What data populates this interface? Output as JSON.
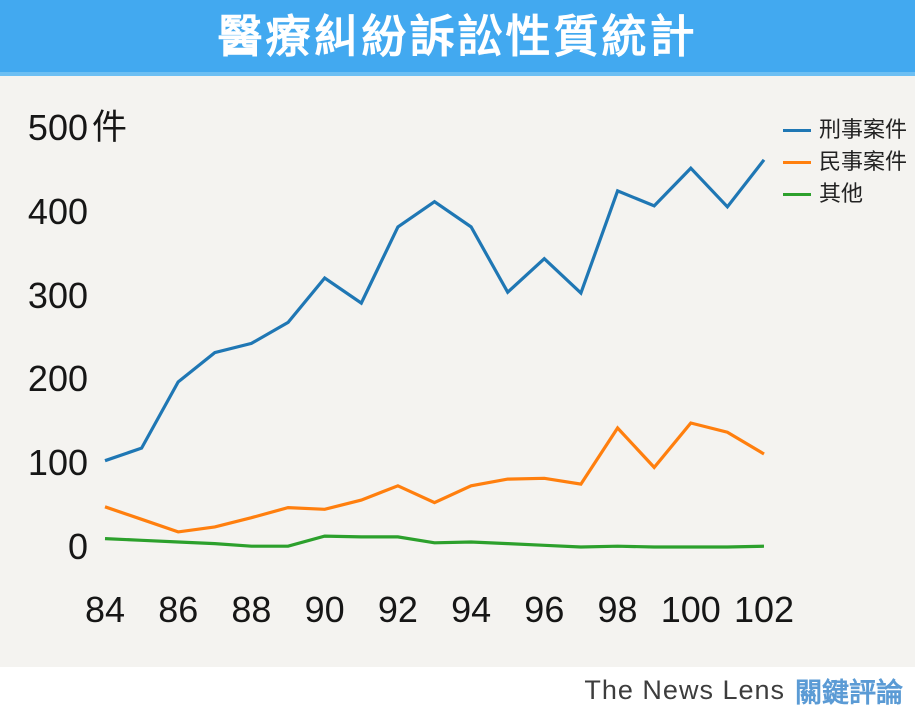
{
  "header": {
    "title": "醫療糾紛訴訟性質統計"
  },
  "chart_data": {
    "type": "line",
    "title": "醫療糾紛訴訟性質統計",
    "unit_label": "件",
    "categories": [
      "84",
      "85",
      "86",
      "87",
      "88",
      "89",
      "90",
      "91",
      "92",
      "93",
      "94",
      "95",
      "96",
      "97",
      "98",
      "99",
      "100",
      "101",
      "102"
    ],
    "x_tick_labels": [
      "84",
      "86",
      "88",
      "90",
      "92",
      "94",
      "96",
      "98",
      "100",
      "102"
    ],
    "y_ticks": [
      500,
      400,
      300,
      200,
      100,
      0
    ],
    "ylim": [
      0,
      500
    ],
    "grid": false,
    "legend_position": "top-right",
    "series": [
      {
        "name": "刑事案件",
        "color": "#1f77b4",
        "values": [
          103,
          118,
          197,
          232,
          243,
          268,
          321,
          291,
          382,
          412,
          382,
          304,
          344,
          303,
          425,
          407,
          452,
          406,
          462
        ]
      },
      {
        "name": "民事案件",
        "color": "#ff7f0e",
        "values": [
          48,
          33,
          18,
          24,
          35,
          47,
          45,
          56,
          73,
          53,
          73,
          81,
          82,
          75,
          142,
          95,
          148,
          137,
          111
        ]
      },
      {
        "name": "其他",
        "color": "#2ca02c",
        "values": [
          10,
          8,
          6,
          4,
          1,
          1,
          13,
          12,
          12,
          5,
          6,
          4,
          2,
          0,
          1,
          0,
          0,
          0,
          1
        ]
      }
    ]
  },
  "footer": {
    "brand_en": "The News Lens",
    "brand_zh": "關鍵評論"
  },
  "colors": {
    "background": "#f4f3f0",
    "header_bg": "#42a9f0",
    "header_edge": "#6dbff3",
    "axis_text": "#161616",
    "brand_en": "#3d3d3d",
    "brand_zh": "#5b9bd5"
  }
}
